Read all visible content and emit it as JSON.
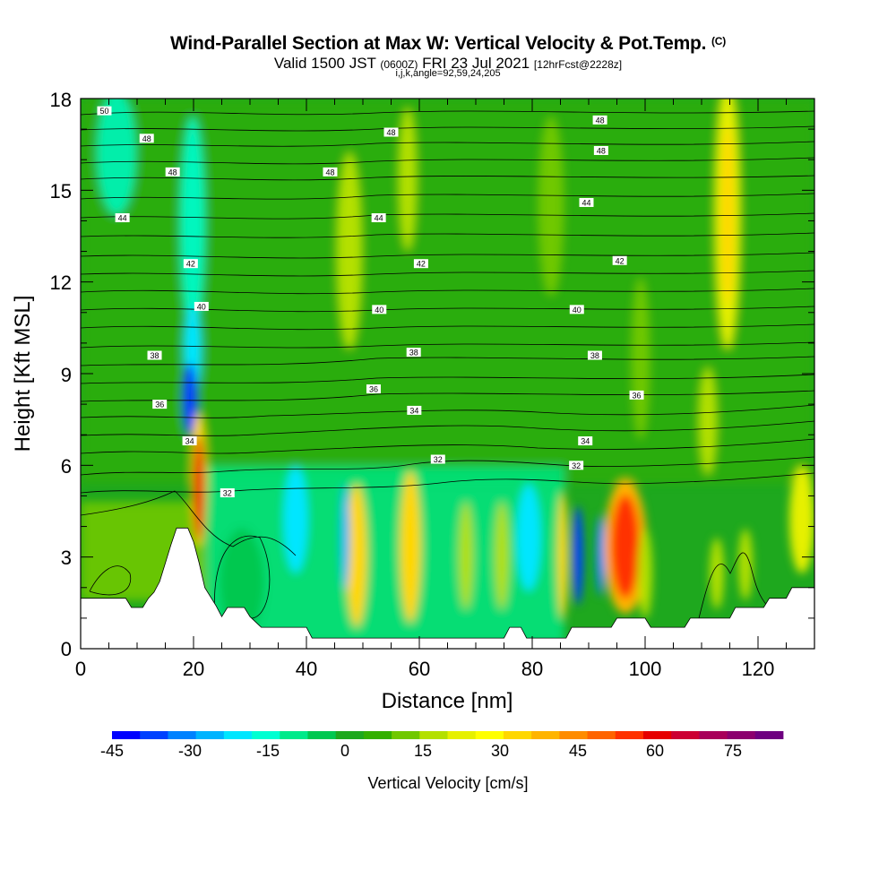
{
  "title": {
    "main": "Wind-Parallel Section at Max W: Vertical Velocity & Pot.Temp.",
    "copyright": "(C)",
    "valid_prefix": "Valid 1500 JST",
    "valid_utc": "(0600Z)",
    "valid_date": "FRI 23 Jul 2021",
    "forecast": "[12hrFcst@2228z]",
    "indices": "i,j,k,angle=92,59,24,205"
  },
  "colorbar": {
    "label": "Vertical Velocity [cm/s]",
    "tick_labels": [
      "-45",
      "-30",
      "-15",
      "0",
      "15",
      "30",
      "45",
      "60",
      "75"
    ],
    "colors": [
      "#0000ff",
      "#0041ff",
      "#0082ff",
      "#00b4ff",
      "#00e6ff",
      "#00ffd2",
      "#00ea8a",
      "#00c850",
      "#1ea81e",
      "#33b000",
      "#70c800",
      "#b4e000",
      "#e6f000",
      "#ffff00",
      "#ffd700",
      "#ffb400",
      "#ff8c00",
      "#ff6400",
      "#ff3200",
      "#e60000",
      "#cc0033",
      "#a8005a",
      "#8c006e",
      "#6e0080"
    ]
  },
  "chart_data": {
    "type": "heatmap",
    "xlabel": "Distance [nm]",
    "ylabel": "Height [Kft MSL]",
    "xlim": [
      0,
      130
    ],
    "ylim": [
      0,
      18
    ],
    "x_ticks": [
      "0",
      "20",
      "40",
      "60",
      "80",
      "100",
      "120"
    ],
    "y_ticks": [
      "0",
      "3",
      "6",
      "9",
      "12",
      "15",
      "18"
    ],
    "terrain_kft": [
      [
        0,
        1.65
      ],
      [
        8,
        1.65
      ],
      [
        9,
        1.35
      ],
      [
        11,
        1.35
      ],
      [
        12,
        1.65
      ],
      [
        13,
        1.85
      ],
      [
        14,
        2.2
      ],
      [
        15,
        2.8
      ],
      [
        16,
        3.4
      ],
      [
        17,
        3.95
      ],
      [
        19,
        3.95
      ],
      [
        20,
        3.5
      ],
      [
        21,
        2.8
      ],
      [
        22,
        2.0
      ],
      [
        24,
        1.4
      ],
      [
        25,
        1.05
      ],
      [
        26,
        1.35
      ],
      [
        29,
        1.35
      ],
      [
        30,
        1.05
      ],
      [
        32,
        0.7
      ],
      [
        40,
        0.7
      ],
      [
        41,
        0.35
      ],
      [
        75,
        0.35
      ],
      [
        76,
        0.7
      ],
      [
        78,
        0.7
      ],
      [
        79,
        0.35
      ],
      [
        86,
        0.35
      ],
      [
        87,
        0.7
      ],
      [
        94,
        0.7
      ],
      [
        95,
        1.0
      ],
      [
        100,
        1.0
      ],
      [
        101,
        0.7
      ],
      [
        107,
        0.7
      ],
      [
        108,
        1.0
      ],
      [
        115,
        1.0
      ],
      [
        116,
        1.35
      ],
      [
        121,
        1.35
      ],
      [
        122,
        1.65
      ],
      [
        125,
        1.65
      ],
      [
        126,
        2.0
      ],
      [
        130,
        2.0
      ]
    ],
    "theta_contour_labels": [
      {
        "value": "50",
        "x": 4.2,
        "y": 17.6
      },
      {
        "value": "48",
        "x": 11.7,
        "y": 16.7
      },
      {
        "value": "48",
        "x": 16.3,
        "y": 15.6
      },
      {
        "value": "48",
        "x": 44.2,
        "y": 15.6
      },
      {
        "value": "48",
        "x": 55.0,
        "y": 16.9
      },
      {
        "value": "48",
        "x": 92.0,
        "y": 17.3
      },
      {
        "value": "48",
        "x": 92.2,
        "y": 16.3
      },
      {
        "value": "44",
        "x": 7.4,
        "y": 14.1
      },
      {
        "value": "44",
        "x": 52.8,
        "y": 14.1
      },
      {
        "value": "44",
        "x": 89.6,
        "y": 14.6
      },
      {
        "value": "42",
        "x": 19.5,
        "y": 12.6
      },
      {
        "value": "42",
        "x": 60.3,
        "y": 12.6
      },
      {
        "value": "42",
        "x": 95.5,
        "y": 12.7
      },
      {
        "value": "40",
        "x": 21.4,
        "y": 11.2
      },
      {
        "value": "40",
        "x": 52.9,
        "y": 11.1
      },
      {
        "value": "40",
        "x": 87.9,
        "y": 11.1
      },
      {
        "value": "38",
        "x": 13.1,
        "y": 9.6
      },
      {
        "value": "38",
        "x": 59.0,
        "y": 9.7
      },
      {
        "value": "38",
        "x": 91.1,
        "y": 9.6
      },
      {
        "value": "36",
        "x": 14.0,
        "y": 8.0
      },
      {
        "value": "36",
        "x": 51.9,
        "y": 8.5
      },
      {
        "value": "36",
        "x": 98.5,
        "y": 8.3
      },
      {
        "value": "34",
        "x": 19.3,
        "y": 6.8
      },
      {
        "value": "34",
        "x": 59.1,
        "y": 7.8
      },
      {
        "value": "34",
        "x": 89.4,
        "y": 6.8
      },
      {
        "value": "32",
        "x": 26.0,
        "y": 5.1
      },
      {
        "value": "32",
        "x": 63.3,
        "y": 6.2
      },
      {
        "value": "32",
        "x": 87.8,
        "y": 6.0
      }
    ],
    "legend": "bottom colorbar"
  }
}
